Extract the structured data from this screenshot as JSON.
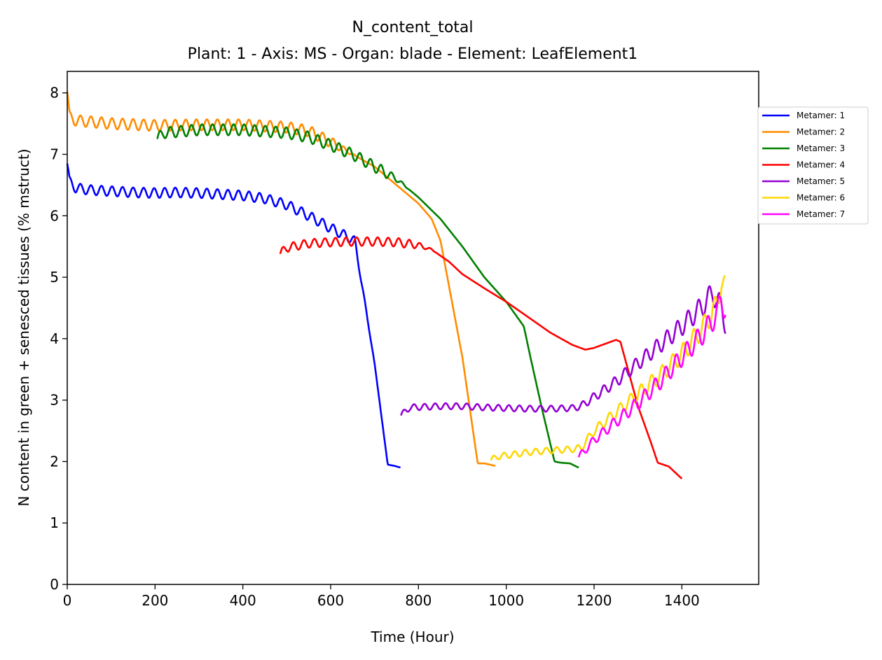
{
  "chart_data": {
    "type": "line",
    "title": "N_content_total",
    "subtitle": "Plant: 1 - Axis: MS - Organ: blade - Element: LeafElement1",
    "xlabel": "Time (Hour)",
    "ylabel": "N content in green + senesced tissues (% mstruct)",
    "xlim": [
      0,
      1575
    ],
    "ylim": [
      0,
      8.35
    ],
    "xticks": [
      0,
      200,
      400,
      600,
      800,
      1000,
      1200,
      1400
    ],
    "yticks": [
      0,
      1,
      2,
      3,
      4,
      5,
      6,
      7,
      8
    ],
    "grid": false,
    "legend": "right, outside plot",
    "series": [
      {
        "name": "Metamer: 1",
        "color": "#0000ff",
        "x": [
          0,
          5,
          20,
          50,
          100,
          150,
          200,
          250,
          300,
          350,
          400,
          450,
          500,
          550,
          600,
          640,
          655,
          700,
          730,
          745,
          760
        ],
        "y": [
          6.85,
          6.55,
          6.45,
          6.42,
          6.4,
          6.38,
          6.37,
          6.38,
          6.37,
          6.35,
          6.33,
          6.28,
          6.18,
          6.0,
          5.8,
          5.65,
          5.6,
          3.6,
          1.95,
          1.93,
          1.9
        ],
        "wave": 0.08,
        "period": 24,
        "wave_until": 640
      },
      {
        "name": "Metamer: 2",
        "color": "#ff8c00",
        "x": [
          0,
          5,
          20,
          100,
          200,
          300,
          400,
          500,
          550,
          600,
          650,
          700,
          750,
          800,
          830,
          850,
          900,
          935,
          950,
          975
        ],
        "y": [
          8.02,
          7.6,
          7.55,
          7.5,
          7.47,
          7.48,
          7.48,
          7.44,
          7.38,
          7.2,
          7.0,
          6.8,
          6.5,
          6.2,
          5.95,
          5.6,
          3.7,
          1.97,
          1.97,
          1.93
        ],
        "wave": 0.09,
        "period": 24,
        "wave_until": 600
      },
      {
        "name": "Metamer: 3",
        "color": "#008000",
        "x": [
          205,
          220,
          300,
          400,
          500,
          550,
          600,
          650,
          700,
          750,
          800,
          850,
          900,
          950,
          1000,
          1040,
          1055,
          1080,
          1110,
          1125,
          1145,
          1165
        ],
        "y": [
          7.25,
          7.35,
          7.4,
          7.4,
          7.35,
          7.28,
          7.15,
          7.0,
          6.8,
          6.6,
          6.3,
          5.95,
          5.5,
          5.0,
          4.6,
          4.2,
          3.7,
          2.9,
          2.0,
          1.98,
          1.97,
          1.9
        ],
        "wave": 0.09,
        "period": 24,
        "wave_until": 720
      },
      {
        "name": "Metamer: 4",
        "color": "#ff0000",
        "x": [
          485,
          500,
          550,
          600,
          650,
          700,
          750,
          800,
          830,
          870,
          900,
          950,
          1000,
          1050,
          1100,
          1150,
          1180,
          1200,
          1250,
          1260,
          1300,
          1330,
          1345,
          1370,
          1400
        ],
        "y": [
          5.38,
          5.48,
          5.55,
          5.57,
          5.58,
          5.58,
          5.57,
          5.52,
          5.45,
          5.25,
          5.05,
          4.82,
          4.6,
          4.35,
          4.1,
          3.9,
          3.82,
          3.85,
          3.98,
          3.95,
          2.9,
          2.3,
          1.98,
          1.92,
          1.72
        ],
        "wave": 0.07,
        "period": 24,
        "wave_until": 780
      },
      {
        "name": "Metamer: 5",
        "color": "#9400d3",
        "x": [
          760,
          780,
          850,
          900,
          950,
          1000,
          1050,
          1100,
          1150,
          1170,
          1200,
          1250,
          1300,
          1350,
          1400,
          1450,
          1470,
          1490,
          1500
        ],
        "y": [
          2.75,
          2.88,
          2.9,
          2.9,
          2.88,
          2.87,
          2.86,
          2.86,
          2.87,
          2.9,
          3.05,
          3.3,
          3.6,
          3.9,
          4.2,
          4.55,
          4.75,
          4.5,
          4.25
        ],
        "wave": 0.05,
        "period": 24,
        "ramp_wave": true
      },
      {
        "name": "Metamer: 6",
        "color": "#ffd700",
        "x": [
          965,
          980,
          1050,
          1100,
          1150,
          1170,
          1200,
          1250,
          1300,
          1350,
          1400,
          1450,
          1480,
          1490,
          1500
        ],
        "y": [
          2.02,
          2.08,
          2.15,
          2.18,
          2.2,
          2.22,
          2.5,
          2.8,
          3.1,
          3.4,
          3.75,
          4.2,
          4.55,
          4.95,
          4.8
        ],
        "wave": 0.05,
        "period": 24,
        "ramp_wave": true
      },
      {
        "name": "Metamer: 7",
        "color": "#ff00ff",
        "x": [
          1165,
          1200,
          1250,
          1300,
          1350,
          1400,
          1450,
          1480,
          1490,
          1500
        ],
        "y": [
          2.07,
          2.35,
          2.65,
          2.95,
          3.3,
          3.7,
          4.1,
          4.4,
          4.65,
          4.45
        ],
        "wave": 0.05,
        "period": 24,
        "ramp_wave": true
      }
    ]
  }
}
